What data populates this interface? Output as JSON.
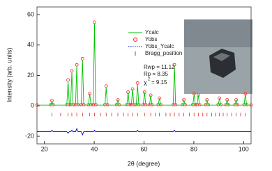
{
  "chart_data": {
    "type": "rietveld",
    "xlabel": "2θ (degree)",
    "ylabel": "Intensity (arb. units)",
    "xlim": [
      17,
      103
    ],
    "ylim": [
      -25,
      65
    ],
    "xticks": [
      20,
      40,
      60,
      80,
      100
    ],
    "yticks": [
      -20,
      0,
      20,
      40,
      60
    ],
    "annotations": [
      "Rwp = 11.12",
      "Rp = 8.35"
    ],
    "chi": {
      "symbol": "χ",
      "sup": "2",
      "text": "= 9.15"
    },
    "x": [
      17,
      22.5,
      23,
      23.5,
      29,
      29.5,
      30,
      30.5,
      31,
      31.5,
      32.5,
      33,
      33.5,
      34.8,
      35.3,
      35.8,
      37.7,
      38.2,
      38.7,
      39.6,
      40.1,
      40.6,
      44.3,
      44.8,
      45.3,
      49,
      49.5,
      50,
      53.1,
      53.6,
      54.1,
      54.9,
      55.4,
      55.9,
      56.9,
      57.4,
      57.9,
      59.7,
      60.2,
      60.7,
      62.2,
      62.7,
      63.2,
      65.7,
      66.2,
      66.7,
      71.7,
      72.2,
      72.7,
      75.5,
      76,
      76.5,
      79.6,
      80.1,
      80.6,
      81.3,
      81.8,
      82.3,
      84.8,
      85.3,
      85.8,
      89.8,
      90.3,
      90.8,
      92.9,
      93.4,
      93.9,
      96.5,
      97,
      97.5,
      100.2,
      100.7,
      101.2,
      103
    ],
    "series": [
      {
        "name": "Ycalc",
        "color": "#00c000",
        "values": [
          0.5,
          0.5,
          3,
          0.5,
          0.5,
          16,
          0.5,
          0.5,
          22,
          0.5,
          0.5,
          26,
          0.5,
          0.5,
          30,
          0.5,
          0.5,
          8,
          0.5,
          0.5,
          54,
          0.5,
          0.5,
          12,
          0.5,
          0.5,
          4,
          0.5,
          0.5,
          9,
          0.5,
          0.5,
          11,
          0.5,
          0.5,
          14,
          0.5,
          0.5,
          9,
          0.5,
          0.5,
          7,
          0.5,
          0.5,
          5,
          0.5,
          0.5,
          26,
          0.5,
          0.5,
          4,
          0.5,
          0.5,
          8,
          0.5,
          0.5,
          7,
          0.5,
          0.5,
          4,
          0.5,
          0.5,
          5,
          0.5,
          0.5,
          4,
          0.5,
          0.5,
          4,
          0.5,
          0.5,
          8,
          0.5,
          0.5
        ]
      },
      {
        "name": "Yobs",
        "color": "#ff2020",
        "values": [
          0.5,
          0.8,
          3.5,
          0.8,
          0.8,
          17,
          0.8,
          0.8,
          23,
          0.8,
          0.8,
          27,
          0.8,
          0.8,
          31,
          0.8,
          0.8,
          8,
          0.8,
          0.8,
          55,
          0.8,
          0.8,
          13,
          0.8,
          0.8,
          4,
          0.8,
          0.8,
          9,
          0.8,
          0.8,
          11,
          0.8,
          0.8,
          15,
          0.8,
          0.8,
          9,
          0.8,
          0.8,
          7,
          0.8,
          0.8,
          5,
          0.8,
          0.8,
          27,
          0.8,
          0.8,
          4,
          0.8,
          0.8,
          8,
          0.8,
          0.8,
          7,
          0.8,
          0.8,
          4,
          0.8,
          0.8,
          5,
          0.8,
          0.8,
          4,
          0.8,
          0.8,
          4,
          0.8,
          0.8,
          8,
          0.8,
          0.5
        ]
      },
      {
        "name": "Yobs_Ycalc",
        "color": "#0000cc",
        "values": [
          -17,
          -17,
          -16,
          -17,
          -17,
          -18,
          -17,
          -17,
          -16,
          -17,
          -17,
          -15,
          -17,
          -17,
          -19,
          -17,
          -17,
          -17,
          -17,
          -17,
          -16,
          -17,
          -17,
          -17,
          -17,
          -17,
          -17,
          -17,
          -17,
          -17,
          -17,
          -17,
          -17,
          -17,
          -17,
          -16,
          -17,
          -17,
          -17,
          -17,
          -17,
          -17,
          -17,
          -17,
          -17,
          -17,
          -17,
          -16,
          -17,
          -17,
          -17,
          -17,
          -17,
          -17,
          -17,
          -17,
          -17,
          -17,
          -17,
          -17,
          -17,
          -17,
          -17,
          -17,
          -17,
          -17,
          -17,
          -17,
          -17,
          -17,
          -17,
          -17,
          -17,
          -17
        ]
      },
      {
        "name": "Bragg_position",
        "color": "#e02020",
        "x": [
          23,
          26.5,
          29.5,
          31,
          33,
          35.3,
          38.2,
          40.1,
          42.5,
          44.8,
          47,
          49.5,
          51.8,
          53.6,
          55.4,
          57.4,
          60.2,
          62.7,
          64.5,
          66.2,
          68.8,
          70.5,
          72.2,
          74.1,
          76,
          78.2,
          80.1,
          81.8,
          83.6,
          85.3,
          87.2,
          88.7,
          90.3,
          91.8,
          93.4,
          95.2,
          97,
          98.8,
          100.7
        ]
      }
    ]
  }
}
